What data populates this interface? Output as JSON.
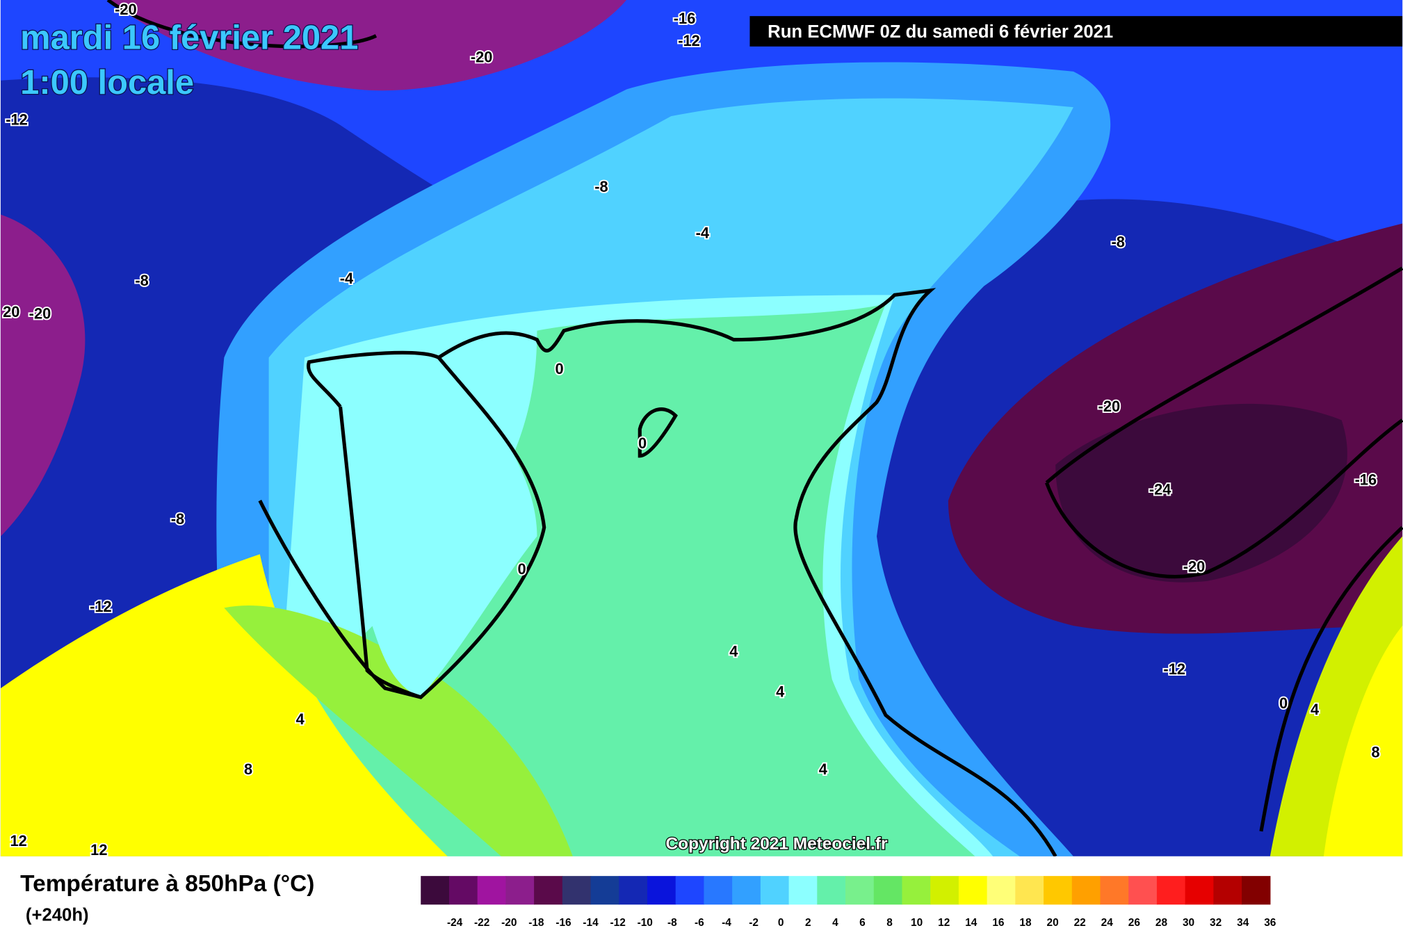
{
  "header": {
    "date": "mardi 16 février 2021",
    "time": "1:00 locale",
    "run": "Run ECMWF 0Z du samedi 6 février 2021"
  },
  "contour_labels": [
    "-20",
    "-16",
    "-12",
    "-20",
    "-12",
    "-8",
    "-4",
    "-8",
    "-8",
    "-4",
    "20",
    "-20",
    "0",
    "0",
    "-20",
    "-24",
    "-16",
    "-8",
    "0",
    "-20",
    "-12",
    "-12",
    "4",
    "4",
    "4",
    "0",
    "4",
    "8",
    "8",
    "4",
    "12",
    "12"
  ],
  "copyright": "Copyright 2021 Meteociel.fr",
  "legend": {
    "title": "Température à 850hPa (°C)",
    "subtitle": "(+240h)",
    "ticks": [
      -24,
      -22,
      -20,
      -18,
      -16,
      -14,
      -12,
      -10,
      -8,
      -6,
      -4,
      -2,
      0,
      2,
      4,
      6,
      8,
      10,
      12,
      14,
      16,
      18,
      20,
      22,
      24,
      26,
      28,
      30,
      32,
      34,
      36
    ],
    "colors": [
      "#3c0a3c",
      "#640a64",
      "#a014a0",
      "#8c1e8c",
      "#5a0a4a",
      "#32326e",
      "#143c96",
      "#1428b4",
      "#0a14dc",
      "#1e46ff",
      "#2878ff",
      "#32a0ff",
      "#50d2ff",
      "#8cffff",
      "#64f0aa",
      "#78f08c",
      "#64e664",
      "#96f03c",
      "#d2f000",
      "#ffff00",
      "#ffff78",
      "#ffe650",
      "#ffc800",
      "#ffa000",
      "#ff7828",
      "#ff5050",
      "#ff1e1e",
      "#e60000",
      "#b40000",
      "#820000",
      "#500000",
      "#000000"
    ]
  }
}
